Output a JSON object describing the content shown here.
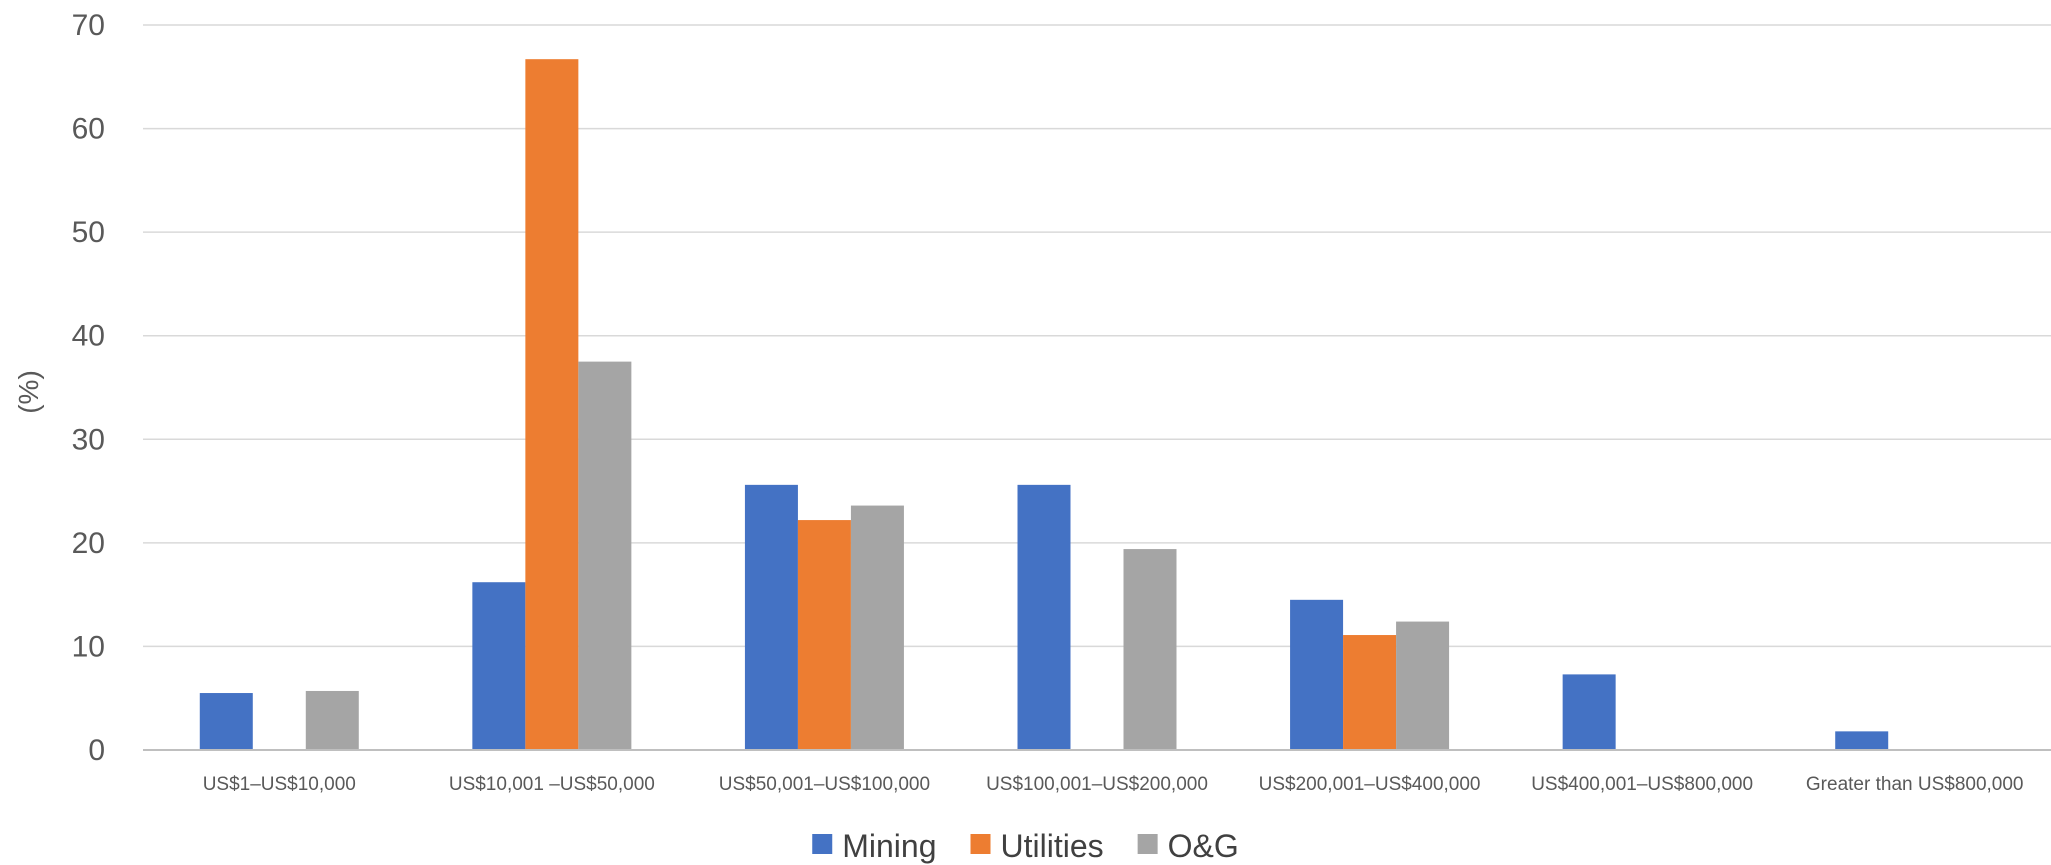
{
  "chart_data": {
    "type": "bar",
    "ylabel": "(%)",
    "xlabel": "",
    "ylim": [
      0,
      70
    ],
    "yticks": [
      0,
      10,
      20,
      30,
      40,
      50,
      60,
      70
    ],
    "grid": true,
    "legend_position": "bottom",
    "categories": [
      "US$1–US$10,000",
      "US$10,001 –US$50,000",
      "US$50,001–US$100,000",
      "US$100,001–US$200,000",
      "US$200,001–US$400,000",
      "US$400,001–US$800,000",
      "Greater than US$800,000"
    ],
    "series": [
      {
        "name": "Mining",
        "color": "#4472c4",
        "values": [
          5.5,
          16.2,
          25.6,
          25.6,
          14.5,
          7.3,
          1.8
        ]
      },
      {
        "name": "Utilities",
        "color": "#ed7d31",
        "values": [
          0,
          66.7,
          22.2,
          0,
          11.1,
          0,
          0
        ]
      },
      {
        "name": "O&G",
        "color": "#a5a5a5",
        "values": [
          5.7,
          37.5,
          23.6,
          19.4,
          12.4,
          0,
          0
        ]
      }
    ]
  }
}
